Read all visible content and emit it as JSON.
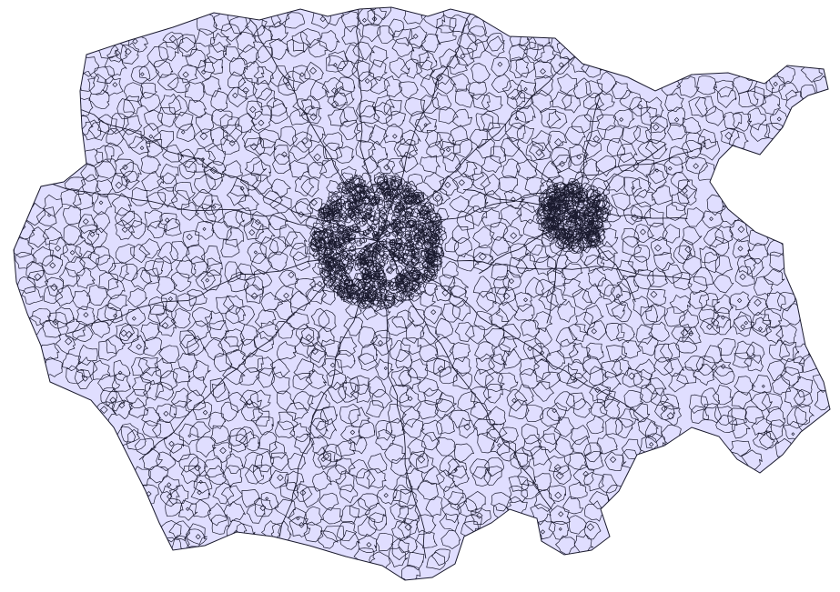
{
  "map": {
    "fill_color": "#e0deff",
    "stroke_color": "#1a1a2e",
    "background_color": "#ffffff"
  }
}
